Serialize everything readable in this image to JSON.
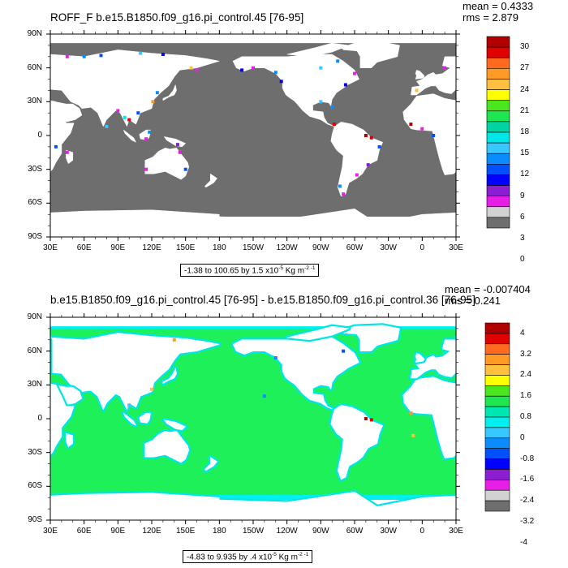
{
  "panels": [
    {
      "title": "ROFF_F b.e15.B1850.f09_g16.pi_control.45 [76-95]",
      "stats": {
        "mean": "mean = 0.4333",
        "rms": "rms = 2.879"
      },
      "range_prefix": "-1.38 to 100.65 by 1.5 x10",
      "range_exp1": "-5",
      "range_mid": " Kg m",
      "range_exp2": "-2 -1",
      "colorbar_labels": [
        "30",
        "27",
        "24",
        "21",
        "18",
        "15",
        "12",
        "9",
        "6",
        "3",
        "0"
      ],
      "colorbar_colors": [
        "#b10000",
        "#e00000",
        "#ff6a1e",
        "#ff9a26",
        "#ffc040",
        "#ffff00",
        "#4ce61e",
        "#1ee650",
        "#00d4a0",
        "#00e6e6",
        "#38c8ff",
        "#0a8cff",
        "#0050ff",
        "#0000ff",
        "#8c1ed2",
        "#e61ee6",
        "#d2d2d2",
        "#6e6e6e"
      ],
      "ocean_color": "#6e6e6e"
    },
    {
      "title": "b.e15.B1850.f09_g16.pi_control.45 [76-95] - b.e15.B1850.f09_g16.pi_control.36 [76-95]",
      "stats": {
        "mean": "mean = -0.007404",
        "rms": "rms = 0.241"
      },
      "range_prefix": "-4.83 to 9.935 by .4 x10",
      "range_exp1": "-5",
      "range_mid": " Kg m",
      "range_exp2": "-2 -1",
      "colorbar_labels": [
        "4",
        "3.2",
        "2.4",
        "1.6",
        "0.8",
        "0",
        "-0.8",
        "-1.6",
        "-2.4",
        "-3.2",
        "-4"
      ],
      "colorbar_colors": [
        "#b10000",
        "#e00000",
        "#ff6a1e",
        "#ff9a26",
        "#ffc040",
        "#ffff00",
        "#4ce61e",
        "#1ee650",
        "#00e6b0",
        "#00f0f0",
        "#38c8ff",
        "#0a8cff",
        "#0050ff",
        "#0000ff",
        "#8c1ed2",
        "#e61ee6",
        "#d2d2d2",
        "#6e6e6e"
      ],
      "ocean_color": "#1ef05a"
    }
  ],
  "axes": {
    "lat_labels": [
      "90N",
      "60N",
      "30N",
      "0",
      "30S",
      "60S",
      "90S"
    ],
    "lon_labels": [
      "30E",
      "60E",
      "90E",
      "120E",
      "150E",
      "180",
      "150W",
      "120W",
      "90W",
      "60W",
      "30W",
      "0",
      "30E"
    ]
  }
}
